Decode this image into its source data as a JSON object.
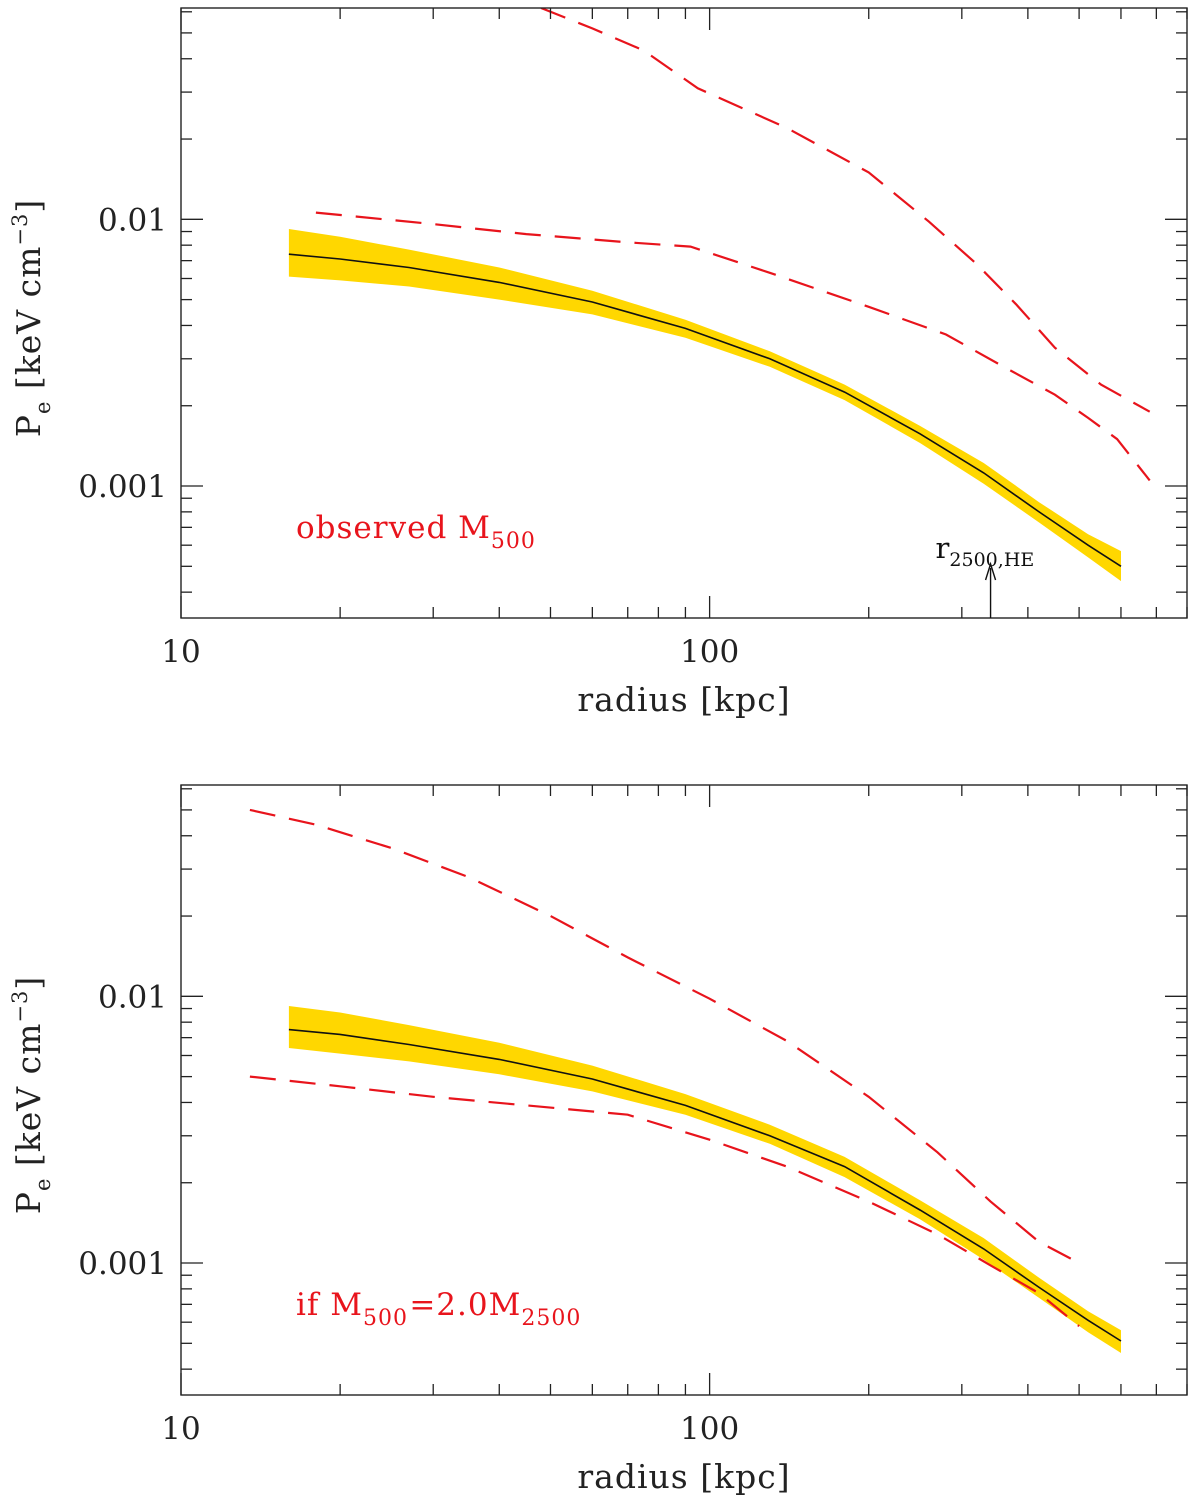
{
  "chart_data": [
    {
      "type": "line",
      "panel": "top",
      "xlabel": "radius [kpc]",
      "ylabel": "Pe [keV cm-3]",
      "ylabel_parts": {
        "main": "P",
        "sub": "e",
        "unit": " [keV cm",
        "sup": "−3",
        "close": "]"
      },
      "xscale": "log",
      "yscale": "log",
      "xlim": [
        10,
        800
      ],
      "ylim": [
        0.00032,
        0.062
      ],
      "xticks": [
        10,
        100
      ],
      "xtick_labels": [
        "10",
        "100"
      ],
      "yticks": [
        0.001,
        0.01
      ],
      "ytick_labels": [
        "0.001",
        "0.01"
      ],
      "annotation": {
        "parts": [
          {
            "t": "observed M"
          },
          {
            "t": "500",
            "sub": true
          }
        ]
      },
      "arrow": {
        "x": 340,
        "label_parts": [
          {
            "t": "r"
          },
          {
            "t": "2500,HE",
            "sub": true
          }
        ]
      },
      "band": {
        "name": "",
        "color": "#ffd700",
        "x": [
          16,
          20,
          27,
          40,
          60,
          90,
          130,
          180,
          250,
          330,
          420,
          520,
          600
        ],
        "lower": [
          0.0061,
          0.0059,
          0.0056,
          0.005,
          0.0044,
          0.0036,
          0.0028,
          0.0021,
          0.00145,
          0.00102,
          0.00073,
          0.00054,
          0.00044
        ],
        "upper": [
          0.0092,
          0.0086,
          0.0077,
          0.0066,
          0.0054,
          0.0042,
          0.0032,
          0.0024,
          0.00168,
          0.00122,
          0.00087,
          0.00066,
          0.00057
        ]
      },
      "series": [
        {
          "name": "",
          "style": "solid",
          "color": "#111111",
          "x": [
            16,
            20,
            27,
            40,
            60,
            90,
            130,
            180,
            250,
            330,
            420,
            520,
            600
          ],
          "y": [
            0.0074,
            0.0071,
            0.0066,
            0.0058,
            0.0049,
            0.0039,
            0.003,
            0.00225,
            0.00157,
            0.00112,
            0.0008,
            0.0006,
            0.0005
          ]
        },
        {
          "name": "",
          "style": "dashed",
          "color": "#e8141c",
          "x": [
            48,
            60,
            75,
            95,
            140,
            200,
            260,
            320,
            380,
            450,
            550,
            680
          ],
          "y": [
            0.062,
            0.052,
            0.043,
            0.031,
            0.022,
            0.015,
            0.0098,
            0.0068,
            0.0048,
            0.0033,
            0.0024,
            0.0019
          ]
        },
        {
          "name": "",
          "style": "dashed",
          "color": "#e8141c",
          "x": [
            18,
            30,
            45,
            70,
            92,
            130,
            200,
            280,
            360,
            450,
            520,
            590,
            680
          ],
          "y": [
            0.0106,
            0.0096,
            0.0088,
            0.0082,
            0.0079,
            0.0063,
            0.0047,
            0.0037,
            0.0028,
            0.0022,
            0.0018,
            0.0015,
            0.00105
          ]
        }
      ]
    },
    {
      "type": "line",
      "panel": "bottom",
      "xlabel": "radius [kpc]",
      "ylabel": "Pe [keV cm-3]",
      "ylabel_parts": {
        "main": "P",
        "sub": "e",
        "unit": " [keV cm",
        "sup": "−3",
        "close": "]"
      },
      "xscale": "log",
      "yscale": "log",
      "xlim": [
        10,
        800
      ],
      "ylim": [
        0.00032,
        0.062
      ],
      "xticks": [
        10,
        100
      ],
      "xtick_labels": [
        "10",
        "100"
      ],
      "yticks": [
        0.001,
        0.01
      ],
      "ytick_labels": [
        "0.001",
        "0.01"
      ],
      "annotation": {
        "parts": [
          {
            "t": "if M"
          },
          {
            "t": "500",
            "sub": true
          },
          {
            "t": "=2.0M"
          },
          {
            "t": "2500",
            "sub": true
          }
        ]
      },
      "band": {
        "name": "",
        "color": "#ffd700",
        "x": [
          16,
          20,
          27,
          40,
          60,
          90,
          130,
          180,
          250,
          330,
          420,
          520,
          600
        ],
        "lower": [
          0.0064,
          0.0061,
          0.0057,
          0.0051,
          0.0044,
          0.0036,
          0.0028,
          0.0021,
          0.00146,
          0.00103,
          0.00074,
          0.00055,
          0.00046
        ],
        "upper": [
          0.0092,
          0.0087,
          0.0078,
          0.0067,
          0.0055,
          0.0043,
          0.0033,
          0.0025,
          0.00172,
          0.00124,
          0.00088,
          0.00066,
          0.00056
        ]
      },
      "series": [
        {
          "name": "",
          "style": "solid",
          "color": "#111111",
          "x": [
            16,
            20,
            27,
            40,
            60,
            90,
            130,
            180,
            250,
            330,
            420,
            520,
            600
          ],
          "y": [
            0.0075,
            0.0072,
            0.0066,
            0.0058,
            0.0049,
            0.0039,
            0.003,
            0.0023,
            0.00158,
            0.00113,
            0.00081,
            0.00061,
            0.00051
          ]
        },
        {
          "name": "",
          "style": "dashed",
          "color": "#e8141c",
          "x": [
            13.5,
            18,
            25,
            35,
            50,
            70,
            100,
            140,
            200,
            270,
            340,
            420,
            500
          ],
          "y": [
            0.05,
            0.044,
            0.036,
            0.028,
            0.02,
            0.014,
            0.0098,
            0.0068,
            0.0042,
            0.0026,
            0.0017,
            0.0012,
            0.001
          ]
        },
        {
          "name": "",
          "style": "dashed",
          "color": "#e8141c",
          "x": [
            13.5,
            20,
            30,
            45,
            70,
            100,
            140,
            200,
            270,
            340,
            420,
            500
          ],
          "y": [
            0.005,
            0.0046,
            0.0042,
            0.0039,
            0.0036,
            0.0029,
            0.0023,
            0.0017,
            0.00128,
            0.00098,
            0.00077,
            0.00058
          ]
        }
      ]
    }
  ]
}
